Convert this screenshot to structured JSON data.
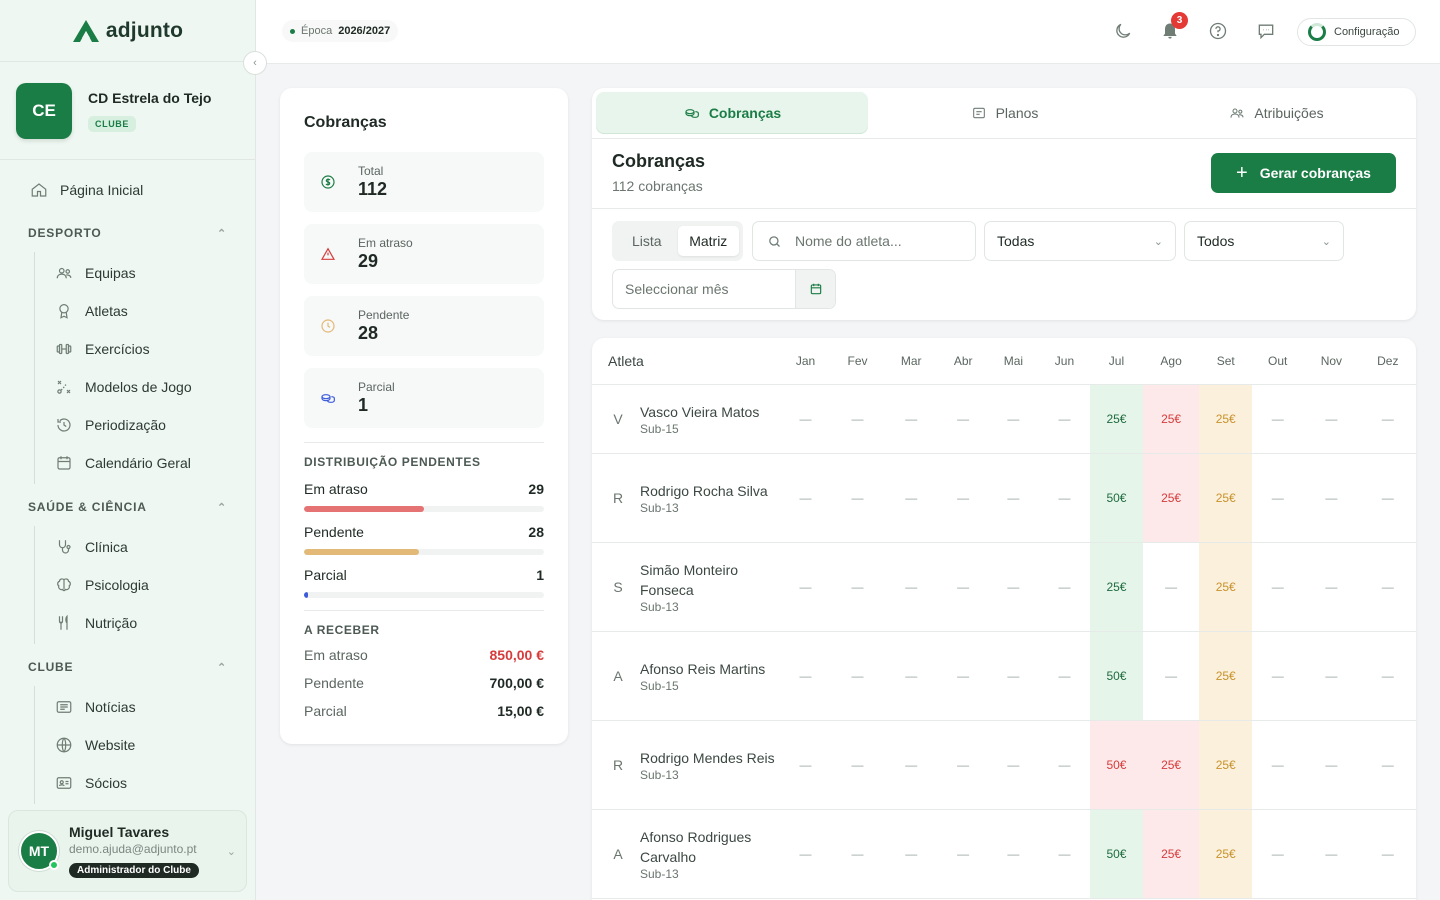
{
  "app": {
    "name": "adjunto"
  },
  "club": {
    "initials": "CE",
    "name": "CD Estrela do Tejo",
    "badge": "CLUBE"
  },
  "nav": {
    "home": "Página Inicial",
    "sections": [
      {
        "title": "DESPORTO",
        "items": [
          {
            "label": "Equipas",
            "icon": "users-icon"
          },
          {
            "label": "Atletas",
            "icon": "award-icon"
          },
          {
            "label": "Exercícios",
            "icon": "dumbbell-icon"
          },
          {
            "label": "Modelos de Jogo",
            "icon": "tactics-icon"
          },
          {
            "label": "Periodização",
            "icon": "history-icon"
          },
          {
            "label": "Calendário Geral",
            "icon": "calendar-icon"
          }
        ]
      },
      {
        "title": "SAÚDE & CIÊNCIA",
        "items": [
          {
            "label": "Clínica",
            "icon": "stethoscope-icon"
          },
          {
            "label": "Psicologia",
            "icon": "brain-icon"
          },
          {
            "label": "Nutrição",
            "icon": "utensils-icon"
          }
        ]
      },
      {
        "title": "CLUBE",
        "items": [
          {
            "label": "Notícias",
            "icon": "newspaper-icon"
          },
          {
            "label": "Website",
            "icon": "globe-icon"
          },
          {
            "label": "Sócios",
            "icon": "id-card-icon"
          }
        ]
      }
    ]
  },
  "user": {
    "initials": "MT",
    "name": "Miguel Tavares",
    "email": "demo.ajuda@adjunto.pt",
    "role": "Administrador do Clube"
  },
  "topbar": {
    "season_label": "Época",
    "season_value": "2026/2027",
    "notifications": "3",
    "config": "Configuração"
  },
  "stats": {
    "title": "Cobranças",
    "boxes": [
      {
        "label": "Total",
        "value": "112",
        "icon": "dollar-icon"
      },
      {
        "label": "Em atraso",
        "value": "29",
        "icon": "alert-icon"
      },
      {
        "label": "Pendente",
        "value": "28",
        "icon": "clock-icon"
      },
      {
        "label": "Parcial",
        "value": "1",
        "icon": "coins-icon"
      }
    ],
    "distribution_title": "DISTRIBUIÇÃO PENDENTES",
    "distribution": [
      {
        "label": "Em atraso",
        "value": "29",
        "fraction": 0.5,
        "color": "#e57373"
      },
      {
        "label": "Pendente",
        "value": "28",
        "fraction": 0.48,
        "color": "#e3b978"
      },
      {
        "label": "Parcial",
        "value": "1",
        "fraction": 0.017,
        "color": "#3b5bdb"
      }
    ],
    "receive_title": "A RECEBER",
    "receive": [
      {
        "label": "Em atraso",
        "value": "850,00 €"
      },
      {
        "label": "Pendente",
        "value": "700,00 €"
      },
      {
        "label": "Parcial",
        "value": "15,00 €"
      }
    ]
  },
  "tabs": [
    {
      "label": "Cobranças",
      "icon": "coins-icon",
      "active": true
    },
    {
      "label": "Planos",
      "icon": "list-icon",
      "active": false
    },
    {
      "label": "Atribuições",
      "icon": "users-icon",
      "active": false
    }
  ],
  "panel": {
    "title": "Cobranças",
    "subtitle": "112 cobranças",
    "generate_label": "Gerar cobranças",
    "view_options": [
      "Lista",
      "Matriz"
    ],
    "active_view": "Matriz",
    "search_placeholder": "Nome do atleta...",
    "select1": "Todas",
    "select2": "Todos",
    "month_placeholder": "Seleccionar mês"
  },
  "matrix": {
    "athlete_header": "Atleta",
    "months": [
      "Jan",
      "Fev",
      "Mar",
      "Abr",
      "Mai",
      "Jun",
      "Jul",
      "Ago",
      "Set",
      "Out",
      "Nov",
      "Dez"
    ],
    "rows": [
      {
        "initial": "V",
        "name": "Vasco Vieira Matos",
        "team": "Sub-15",
        "cells": [
          [
            "—",
            ""
          ],
          [
            "—",
            ""
          ],
          [
            "—",
            ""
          ],
          [
            "—",
            ""
          ],
          [
            "—",
            ""
          ],
          [
            "—",
            ""
          ],
          [
            "25€",
            "paid"
          ],
          [
            "25€",
            "late"
          ],
          [
            "25€",
            "pend"
          ],
          [
            "—",
            ""
          ],
          [
            "—",
            ""
          ],
          [
            "—",
            ""
          ]
        ]
      },
      {
        "initial": "R",
        "name": "Rodrigo Rocha Silva",
        "team": "Sub-13",
        "cells": [
          [
            "—",
            ""
          ],
          [
            "—",
            ""
          ],
          [
            "—",
            ""
          ],
          [
            "—",
            ""
          ],
          [
            "—",
            ""
          ],
          [
            "—",
            ""
          ],
          [
            "50€",
            "paid"
          ],
          [
            "25€",
            "late"
          ],
          [
            "25€",
            "pend"
          ],
          [
            "—",
            ""
          ],
          [
            "—",
            ""
          ],
          [
            "—",
            ""
          ]
        ]
      },
      {
        "initial": "S",
        "name": "Simão Monteiro Fonseca",
        "team": "Sub-13",
        "cells": [
          [
            "—",
            ""
          ],
          [
            "—",
            ""
          ],
          [
            "—",
            ""
          ],
          [
            "—",
            ""
          ],
          [
            "—",
            ""
          ],
          [
            "—",
            ""
          ],
          [
            "25€",
            "paid"
          ],
          [
            "—",
            ""
          ],
          [
            "25€",
            "pend"
          ],
          [
            "—",
            ""
          ],
          [
            "—",
            ""
          ],
          [
            "—",
            ""
          ]
        ]
      },
      {
        "initial": "A",
        "name": "Afonso Reis Martins",
        "team": "Sub-15",
        "cells": [
          [
            "—",
            ""
          ],
          [
            "—",
            ""
          ],
          [
            "—",
            ""
          ],
          [
            "—",
            ""
          ],
          [
            "—",
            ""
          ],
          [
            "—",
            ""
          ],
          [
            "50€",
            "paid"
          ],
          [
            "—",
            ""
          ],
          [
            "25€",
            "pend"
          ],
          [
            "—",
            ""
          ],
          [
            "—",
            ""
          ],
          [
            "—",
            ""
          ]
        ]
      },
      {
        "initial": "R",
        "name": "Rodrigo Mendes Reis",
        "team": "Sub-13",
        "cells": [
          [
            "—",
            ""
          ],
          [
            "—",
            ""
          ],
          [
            "—",
            ""
          ],
          [
            "—",
            ""
          ],
          [
            "—",
            ""
          ],
          [
            "—",
            ""
          ],
          [
            "50€",
            "late"
          ],
          [
            "25€",
            "late"
          ],
          [
            "25€",
            "pend"
          ],
          [
            "—",
            ""
          ],
          [
            "—",
            ""
          ],
          [
            "—",
            ""
          ]
        ]
      },
      {
        "initial": "A",
        "name": "Afonso Rodrigues Carvalho",
        "team": "Sub-13",
        "cells": [
          [
            "—",
            ""
          ],
          [
            "—",
            ""
          ],
          [
            "—",
            ""
          ],
          [
            "—",
            ""
          ],
          [
            "—",
            ""
          ],
          [
            "—",
            ""
          ],
          [
            "50€",
            "paid"
          ],
          [
            "25€",
            "late"
          ],
          [
            "25€",
            "pend"
          ],
          [
            "—",
            ""
          ],
          [
            "—",
            ""
          ],
          [
            "—",
            ""
          ]
        ]
      }
    ]
  }
}
